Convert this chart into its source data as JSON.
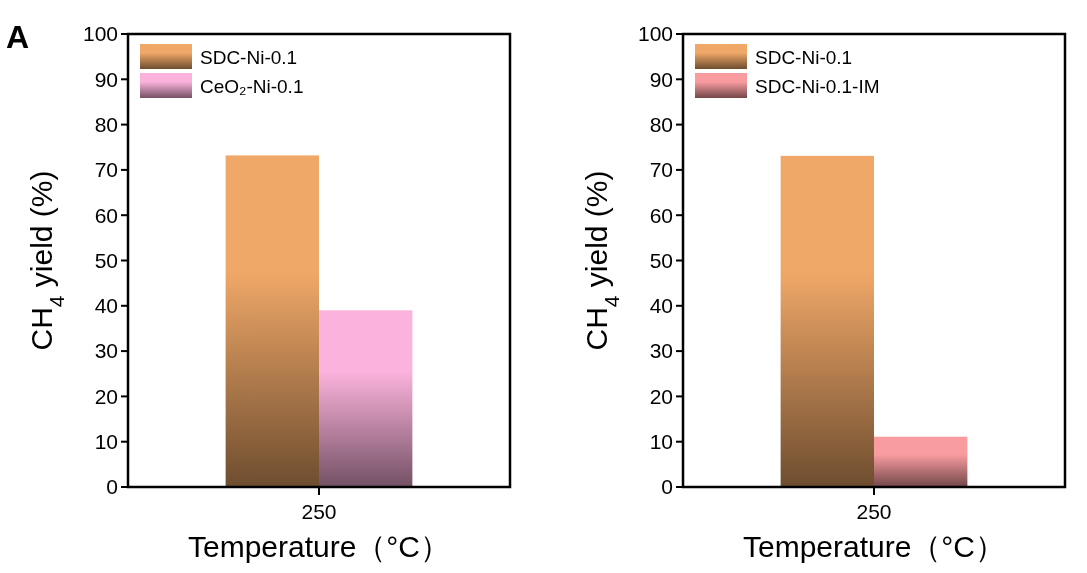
{
  "chart_data": [
    {
      "type": "bar",
      "annotations": [
        "A"
      ],
      "categories": [
        "250"
      ],
      "xlabel": "Temperature（°C）",
      "ylabel": "CH$_{4}$ yield (%)",
      "ylim": [
        0,
        100
      ],
      "yticks": [
        0,
        10,
        20,
        30,
        40,
        50,
        60,
        70,
        80,
        90,
        100
      ],
      "legend": "top left",
      "series": [
        {
          "name": "SDC-Ni-0.1",
          "color": "#f0a868",
          "values": [
            73.2
          ]
        },
        {
          "name": "CeO₂-Ni-0.1",
          "color": "#fbb2dc",
          "values": [
            39.0
          ]
        }
      ]
    },
    {
      "type": "bar",
      "categories": [
        "250"
      ],
      "xlabel": "Temperature（°C）",
      "ylabel": "CH$_{4}$ yield (%)",
      "ylim": [
        0,
        100
      ],
      "yticks": [
        0,
        10,
        20,
        30,
        40,
        50,
        60,
        70,
        80,
        90,
        100
      ],
      "legend": "top left",
      "series": [
        {
          "name": "SDC-Ni-0.1",
          "color": "#f0a868",
          "values": [
            73.1
          ]
        },
        {
          "name": "SDC-Ni-0.1-IM",
          "color": "#f99ca0",
          "values": [
            11.1
          ]
        }
      ]
    }
  ]
}
